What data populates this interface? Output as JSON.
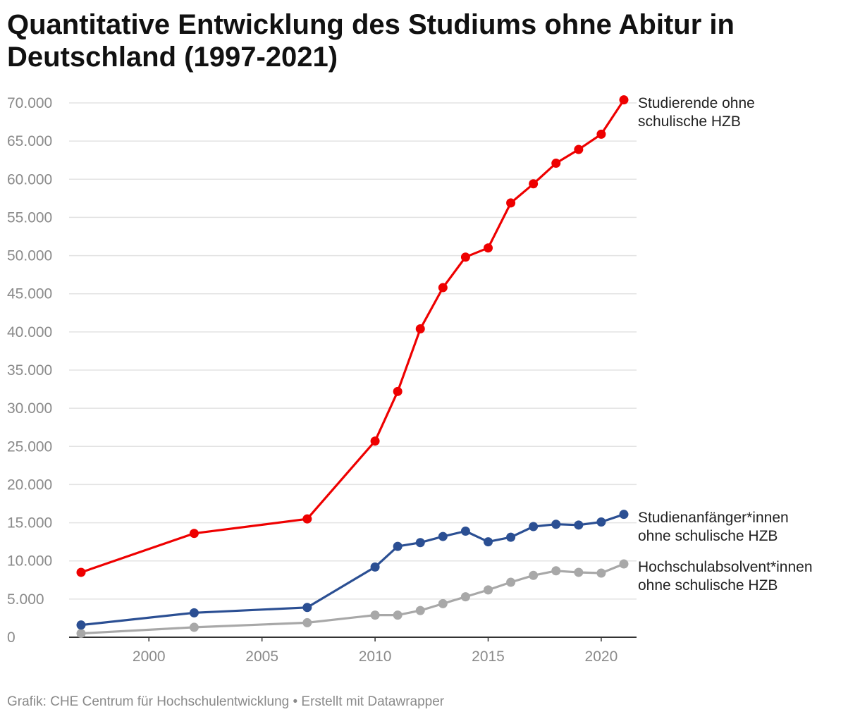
{
  "title": "Quantitative Entwicklung des Studiums ohne Abitur in Deutschland (1997-2021)",
  "footer": "Grafik: CHE Centrum für Hochschulentwicklung • Erstellt mit Datawrapper",
  "chart_data": {
    "type": "line",
    "title": "Quantitative Entwicklung des Studiums ohne Abitur in Deutschland (1997-2021)",
    "xlabel": "",
    "ylabel": "",
    "xlim": [
      1997,
      2021
    ],
    "ylim": [
      0,
      70000
    ],
    "grid": true,
    "legend": "direct labels at line ends (right)",
    "x_ticks": [
      2000,
      2005,
      2010,
      2015,
      2020
    ],
    "y_ticks": [
      0,
      5000,
      10000,
      15000,
      20000,
      25000,
      30000,
      35000,
      40000,
      45000,
      50000,
      55000,
      60000,
      65000,
      70000
    ],
    "y_tick_labels": [
      "0",
      "5.000",
      "10.000",
      "15.000",
      "20.000",
      "25.000",
      "30.000",
      "35.000",
      "40.000",
      "45.000",
      "50.000",
      "55.000",
      "60.000",
      "65.000",
      "70.000"
    ],
    "series": [
      {
        "name": "Studierende ohne schulische HZB",
        "label_lines": [
          "Studierende ohne",
          "schulische HZB"
        ],
        "color": "#ee0000",
        "points": [
          {
            "x": 1997,
            "y": 8500
          },
          {
            "x": 2002,
            "y": 13600
          },
          {
            "x": 2007,
            "y": 15500
          },
          {
            "x": 2010,
            "y": 25700
          },
          {
            "x": 2011,
            "y": 32200
          },
          {
            "x": 2012,
            "y": 40400
          },
          {
            "x": 2013,
            "y": 45800
          },
          {
            "x": 2014,
            "y": 49800
          },
          {
            "x": 2015,
            "y": 51000
          },
          {
            "x": 2016,
            "y": 56900
          },
          {
            "x": 2017,
            "y": 59400
          },
          {
            "x": 2018,
            "y": 62100
          },
          {
            "x": 2019,
            "y": 63900
          },
          {
            "x": 2020,
            "y": 65900
          },
          {
            "x": 2021,
            "y": 70400
          }
        ]
      },
      {
        "name": "Studienanfänger*innen ohne schulische HZB",
        "label_lines": [
          "Studienanfänger*innen",
          "ohne schulische HZB"
        ],
        "color": "#2b4f93",
        "points": [
          {
            "x": 1997,
            "y": 1600
          },
          {
            "x": 2002,
            "y": 3200
          },
          {
            "x": 2007,
            "y": 3900
          },
          {
            "x": 2010,
            "y": 9200
          },
          {
            "x": 2011,
            "y": 11900
          },
          {
            "x": 2012,
            "y": 12400
          },
          {
            "x": 2013,
            "y": 13200
          },
          {
            "x": 2014,
            "y": 13900
          },
          {
            "x": 2015,
            "y": 12500
          },
          {
            "x": 2016,
            "y": 13100
          },
          {
            "x": 2017,
            "y": 14500
          },
          {
            "x": 2018,
            "y": 14800
          },
          {
            "x": 2019,
            "y": 14700
          },
          {
            "x": 2020,
            "y": 15100
          },
          {
            "x": 2021,
            "y": 16100
          }
        ]
      },
      {
        "name": "Hochschulabsolvent*innen ohne schulische HZB",
        "label_lines": [
          "Hochschulabsolvent*innen",
          "ohne schulische HZB"
        ],
        "color": "#a8a8a8",
        "points": [
          {
            "x": 1997,
            "y": 500
          },
          {
            "x": 2002,
            "y": 1300
          },
          {
            "x": 2007,
            "y": 1900
          },
          {
            "x": 2010,
            "y": 2900
          },
          {
            "x": 2011,
            "y": 2900
          },
          {
            "x": 2012,
            "y": 3500
          },
          {
            "x": 2013,
            "y": 4400
          },
          {
            "x": 2014,
            "y": 5300
          },
          {
            "x": 2015,
            "y": 6200
          },
          {
            "x": 2016,
            "y": 7200
          },
          {
            "x": 2017,
            "y": 8100
          },
          {
            "x": 2018,
            "y": 8700
          },
          {
            "x": 2019,
            "y": 8500
          },
          {
            "x": 2020,
            "y": 8400
          },
          {
            "x": 2021,
            "y": 9600
          }
        ]
      }
    ]
  }
}
